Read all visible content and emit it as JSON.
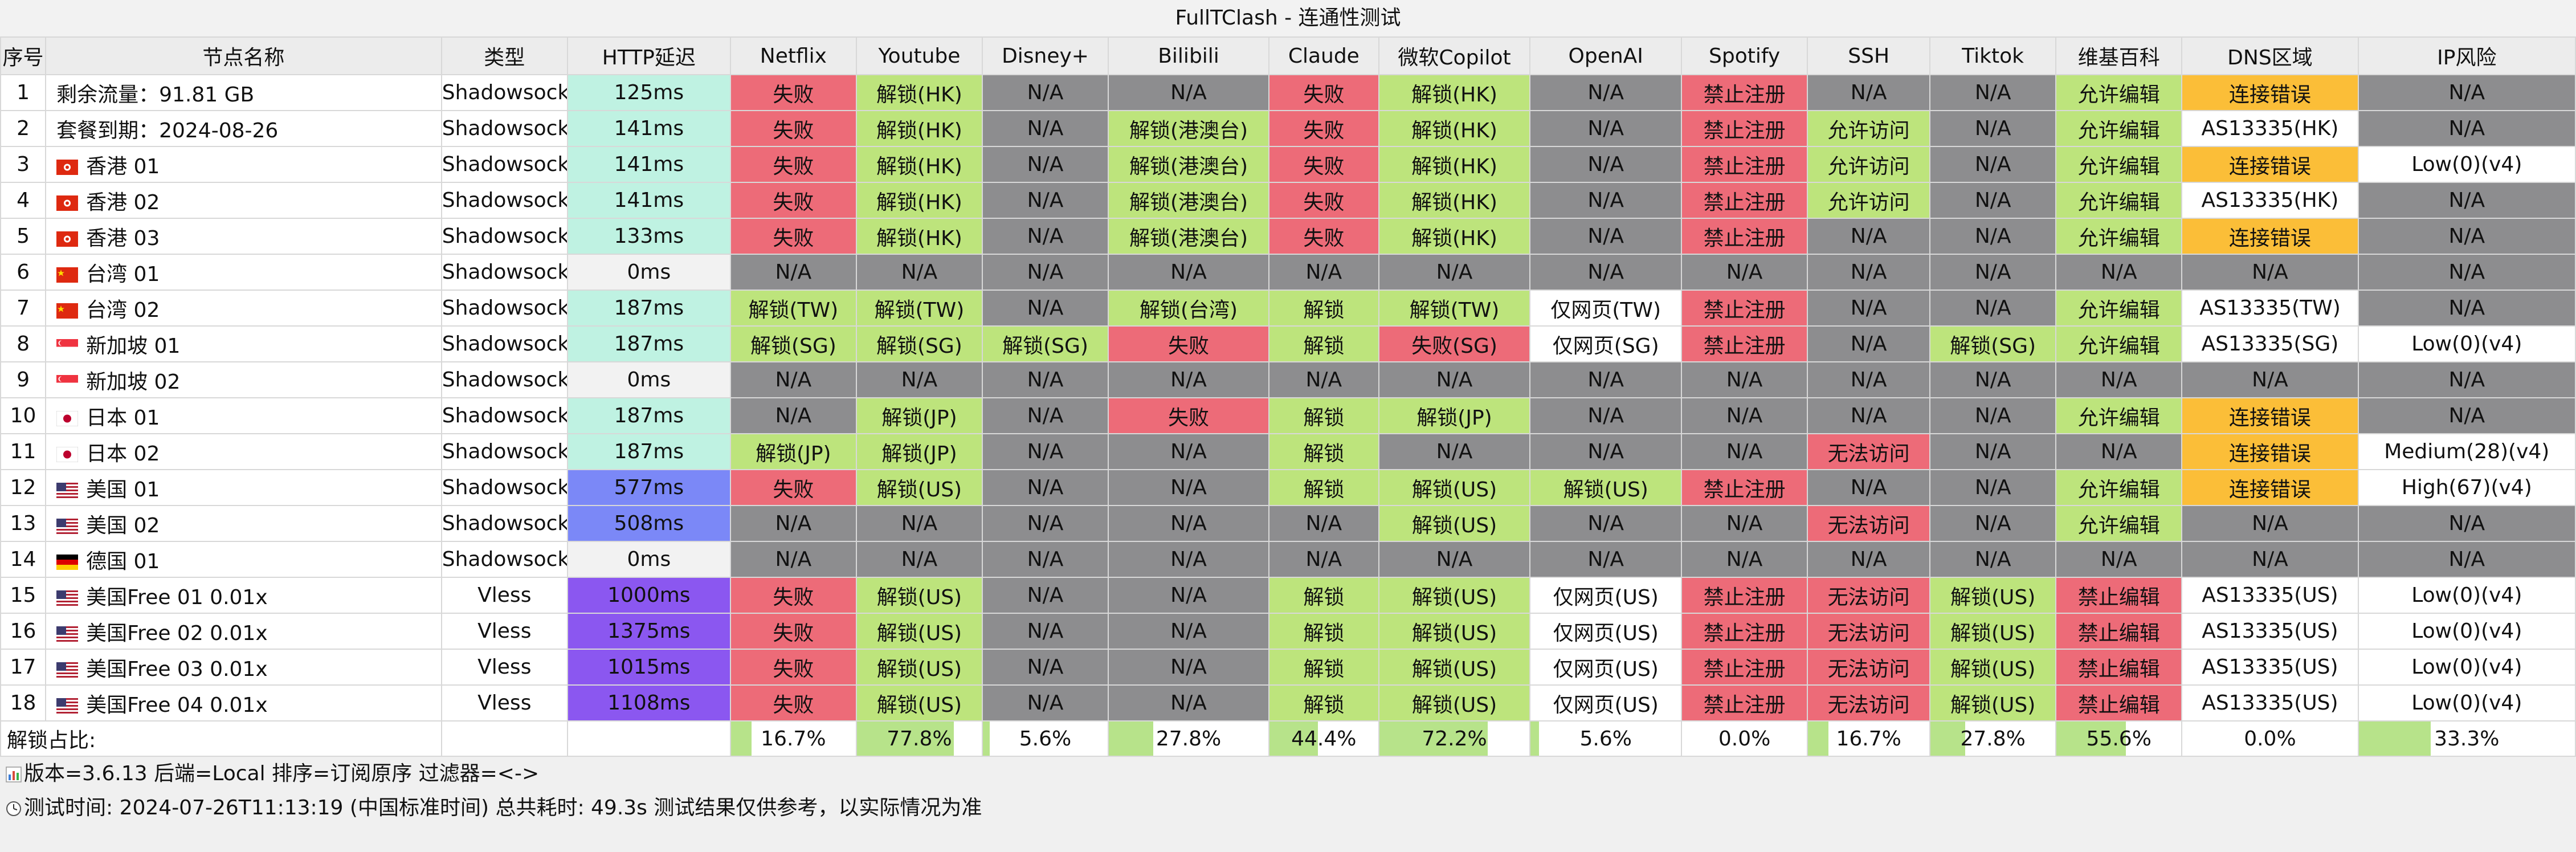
{
  "title": "FullTClash - 连通性测试",
  "columns": [
    "序号",
    "节点名称",
    "类型",
    "HTTP延迟",
    "Netflix",
    "Youtube",
    "Disney+",
    "Bilibili",
    "Claude",
    "微软Copilot",
    "OpenAI",
    "Spotify",
    "SSH",
    "Tiktok",
    "维基百科",
    "DNS区域",
    "IP风险"
  ],
  "colors": {
    "green": "#bde47c",
    "red": "#ed6b78",
    "gray": "#8d8d8f",
    "orange": "#fbbe38",
    "white": "#ffffff",
    "delay_fast": "#bff2e2",
    "delay_zero": "#f2f2f2",
    "delay_mid": "#7b88f7",
    "delay_slow": "#8b57f0",
    "summary_bar": "#b7e38a"
  },
  "rows": [
    {
      "idx": "1",
      "flag": "",
      "name": "剩余流量：91.81 GB",
      "type": "Shadowsocks",
      "delay": "125ms",
      "delay_color": "delay_fast",
      "cells": [
        [
          "失败",
          "red"
        ],
        [
          "解锁(HK)",
          "green"
        ],
        [
          "N/A",
          "gray"
        ],
        [
          "N/A",
          "gray"
        ],
        [
          "失败",
          "red"
        ],
        [
          "解锁(HK)",
          "green"
        ],
        [
          "N/A",
          "gray"
        ],
        [
          "禁止注册",
          "red"
        ],
        [
          "N/A",
          "gray"
        ],
        [
          "N/A",
          "gray"
        ],
        [
          "允许编辑",
          "green"
        ],
        [
          "连接错误",
          "orange"
        ],
        [
          "N/A",
          "gray"
        ]
      ]
    },
    {
      "idx": "2",
      "flag": "",
      "name": "套餐到期：2024-08-26",
      "type": "Shadowsocks",
      "delay": "141ms",
      "delay_color": "delay_fast",
      "cells": [
        [
          "失败",
          "red"
        ],
        [
          "解锁(HK)",
          "green"
        ],
        [
          "N/A",
          "gray"
        ],
        [
          "解锁(港澳台)",
          "green"
        ],
        [
          "失败",
          "red"
        ],
        [
          "解锁(HK)",
          "green"
        ],
        [
          "N/A",
          "gray"
        ],
        [
          "禁止注册",
          "red"
        ],
        [
          "允许访问",
          "green"
        ],
        [
          "N/A",
          "gray"
        ],
        [
          "允许编辑",
          "green"
        ],
        [
          "AS13335(HK)",
          "white"
        ],
        [
          "N/A",
          "gray"
        ]
      ]
    },
    {
      "idx": "3",
      "flag": "hk",
      "name": "香港 01",
      "type": "Shadowsocks",
      "delay": "141ms",
      "delay_color": "delay_fast",
      "cells": [
        [
          "失败",
          "red"
        ],
        [
          "解锁(HK)",
          "green"
        ],
        [
          "N/A",
          "gray"
        ],
        [
          "解锁(港澳台)",
          "green"
        ],
        [
          "失败",
          "red"
        ],
        [
          "解锁(HK)",
          "green"
        ],
        [
          "N/A",
          "gray"
        ],
        [
          "禁止注册",
          "red"
        ],
        [
          "允许访问",
          "green"
        ],
        [
          "N/A",
          "gray"
        ],
        [
          "允许编辑",
          "green"
        ],
        [
          "连接错误",
          "orange"
        ],
        [
          "Low(0)(v4)",
          "white"
        ]
      ]
    },
    {
      "idx": "4",
      "flag": "hk",
      "name": "香港 02",
      "type": "Shadowsocks",
      "delay": "141ms",
      "delay_color": "delay_fast",
      "cells": [
        [
          "失败",
          "red"
        ],
        [
          "解锁(HK)",
          "green"
        ],
        [
          "N/A",
          "gray"
        ],
        [
          "解锁(港澳台)",
          "green"
        ],
        [
          "失败",
          "red"
        ],
        [
          "解锁(HK)",
          "green"
        ],
        [
          "N/A",
          "gray"
        ],
        [
          "禁止注册",
          "red"
        ],
        [
          "允许访问",
          "green"
        ],
        [
          "N/A",
          "gray"
        ],
        [
          "允许编辑",
          "green"
        ],
        [
          "AS13335(HK)",
          "white"
        ],
        [
          "N/A",
          "gray"
        ]
      ]
    },
    {
      "idx": "5",
      "flag": "hk",
      "name": "香港 03",
      "type": "Shadowsocks",
      "delay": "133ms",
      "delay_color": "delay_fast",
      "cells": [
        [
          "失败",
          "red"
        ],
        [
          "解锁(HK)",
          "green"
        ],
        [
          "N/A",
          "gray"
        ],
        [
          "解锁(港澳台)",
          "green"
        ],
        [
          "失败",
          "red"
        ],
        [
          "解锁(HK)",
          "green"
        ],
        [
          "N/A",
          "gray"
        ],
        [
          "禁止注册",
          "red"
        ],
        [
          "N/A",
          "gray"
        ],
        [
          "N/A",
          "gray"
        ],
        [
          "允许编辑",
          "green"
        ],
        [
          "连接错误",
          "orange"
        ],
        [
          "N/A",
          "gray"
        ]
      ]
    },
    {
      "idx": "6",
      "flag": "cn",
      "name": "台湾 01",
      "type": "Shadowsocks",
      "delay": "0ms",
      "delay_color": "delay_zero",
      "cells": [
        [
          "N/A",
          "gray"
        ],
        [
          "N/A",
          "gray"
        ],
        [
          "N/A",
          "gray"
        ],
        [
          "N/A",
          "gray"
        ],
        [
          "N/A",
          "gray"
        ],
        [
          "N/A",
          "gray"
        ],
        [
          "N/A",
          "gray"
        ],
        [
          "N/A",
          "gray"
        ],
        [
          "N/A",
          "gray"
        ],
        [
          "N/A",
          "gray"
        ],
        [
          "N/A",
          "gray"
        ],
        [
          "N/A",
          "gray"
        ],
        [
          "N/A",
          "gray"
        ]
      ]
    },
    {
      "idx": "7",
      "flag": "cn",
      "name": "台湾 02",
      "type": "Shadowsocks",
      "delay": "187ms",
      "delay_color": "delay_fast",
      "cells": [
        [
          "解锁(TW)",
          "green"
        ],
        [
          "解锁(TW)",
          "green"
        ],
        [
          "N/A",
          "gray"
        ],
        [
          "解锁(台湾)",
          "green"
        ],
        [
          "解锁",
          "green"
        ],
        [
          "解锁(TW)",
          "green"
        ],
        [
          "仅网页(TW)",
          "white"
        ],
        [
          "禁止注册",
          "red"
        ],
        [
          "N/A",
          "gray"
        ],
        [
          "N/A",
          "gray"
        ],
        [
          "允许编辑",
          "green"
        ],
        [
          "AS13335(TW)",
          "white"
        ],
        [
          "N/A",
          "gray"
        ]
      ]
    },
    {
      "idx": "8",
      "flag": "sg",
      "name": "新加坡 01",
      "type": "Shadowsocks",
      "delay": "187ms",
      "delay_color": "delay_fast",
      "cells": [
        [
          "解锁(SG)",
          "green"
        ],
        [
          "解锁(SG)",
          "green"
        ],
        [
          "解锁(SG)",
          "green"
        ],
        [
          "失败",
          "red"
        ],
        [
          "解锁",
          "green"
        ],
        [
          "失败(SG)",
          "red"
        ],
        [
          "仅网页(SG)",
          "white"
        ],
        [
          "禁止注册",
          "red"
        ],
        [
          "N/A",
          "gray"
        ],
        [
          "解锁(SG)",
          "green"
        ],
        [
          "允许编辑",
          "green"
        ],
        [
          "AS13335(SG)",
          "white"
        ],
        [
          "Low(0)(v4)",
          "white"
        ]
      ]
    },
    {
      "idx": "9",
      "flag": "sg",
      "name": "新加坡 02",
      "type": "Shadowsocks",
      "delay": "0ms",
      "delay_color": "delay_zero",
      "cells": [
        [
          "N/A",
          "gray"
        ],
        [
          "N/A",
          "gray"
        ],
        [
          "N/A",
          "gray"
        ],
        [
          "N/A",
          "gray"
        ],
        [
          "N/A",
          "gray"
        ],
        [
          "N/A",
          "gray"
        ],
        [
          "N/A",
          "gray"
        ],
        [
          "N/A",
          "gray"
        ],
        [
          "N/A",
          "gray"
        ],
        [
          "N/A",
          "gray"
        ],
        [
          "N/A",
          "gray"
        ],
        [
          "N/A",
          "gray"
        ],
        [
          "N/A",
          "gray"
        ]
      ]
    },
    {
      "idx": "10",
      "flag": "jp",
      "name": "日本 01",
      "type": "Shadowsocks",
      "delay": "187ms",
      "delay_color": "delay_fast",
      "cells": [
        [
          "N/A",
          "gray"
        ],
        [
          "解锁(JP)",
          "green"
        ],
        [
          "N/A",
          "gray"
        ],
        [
          "失败",
          "red"
        ],
        [
          "解锁",
          "green"
        ],
        [
          "解锁(JP)",
          "green"
        ],
        [
          "N/A",
          "gray"
        ],
        [
          "N/A",
          "gray"
        ],
        [
          "N/A",
          "gray"
        ],
        [
          "N/A",
          "gray"
        ],
        [
          "允许编辑",
          "green"
        ],
        [
          "连接错误",
          "orange"
        ],
        [
          "N/A",
          "gray"
        ]
      ]
    },
    {
      "idx": "11",
      "flag": "jp",
      "name": "日本 02",
      "type": "Shadowsocks",
      "delay": "187ms",
      "delay_color": "delay_fast",
      "cells": [
        [
          "解锁(JP)",
          "green"
        ],
        [
          "解锁(JP)",
          "green"
        ],
        [
          "N/A",
          "gray"
        ],
        [
          "N/A",
          "gray"
        ],
        [
          "解锁",
          "green"
        ],
        [
          "N/A",
          "gray"
        ],
        [
          "N/A",
          "gray"
        ],
        [
          "N/A",
          "gray"
        ],
        [
          "无法访问",
          "red"
        ],
        [
          "N/A",
          "gray"
        ],
        [
          "N/A",
          "gray"
        ],
        [
          "连接错误",
          "orange"
        ],
        [
          "Medium(28)(v4)",
          "white"
        ]
      ]
    },
    {
      "idx": "12",
      "flag": "us",
      "name": "美国 01",
      "type": "Shadowsocks",
      "delay": "577ms",
      "delay_color": "delay_mid",
      "cells": [
        [
          "失败",
          "red"
        ],
        [
          "解锁(US)",
          "green"
        ],
        [
          "N/A",
          "gray"
        ],
        [
          "N/A",
          "gray"
        ],
        [
          "解锁",
          "green"
        ],
        [
          "解锁(US)",
          "green"
        ],
        [
          "解锁(US)",
          "green"
        ],
        [
          "禁止注册",
          "red"
        ],
        [
          "N/A",
          "gray"
        ],
        [
          "N/A",
          "gray"
        ],
        [
          "允许编辑",
          "green"
        ],
        [
          "连接错误",
          "orange"
        ],
        [
          "High(67)(v4)",
          "white"
        ]
      ]
    },
    {
      "idx": "13",
      "flag": "us",
      "name": "美国 02",
      "type": "Shadowsocks",
      "delay": "508ms",
      "delay_color": "delay_mid",
      "cells": [
        [
          "N/A",
          "gray"
        ],
        [
          "N/A",
          "gray"
        ],
        [
          "N/A",
          "gray"
        ],
        [
          "N/A",
          "gray"
        ],
        [
          "N/A",
          "gray"
        ],
        [
          "解锁(US)",
          "green"
        ],
        [
          "N/A",
          "gray"
        ],
        [
          "N/A",
          "gray"
        ],
        [
          "无法访问",
          "red"
        ],
        [
          "N/A",
          "gray"
        ],
        [
          "允许编辑",
          "green"
        ],
        [
          "N/A",
          "gray"
        ],
        [
          "N/A",
          "gray"
        ]
      ]
    },
    {
      "idx": "14",
      "flag": "de",
      "name": "德国 01",
      "type": "Shadowsocks",
      "delay": "0ms",
      "delay_color": "delay_zero",
      "cells": [
        [
          "N/A",
          "gray"
        ],
        [
          "N/A",
          "gray"
        ],
        [
          "N/A",
          "gray"
        ],
        [
          "N/A",
          "gray"
        ],
        [
          "N/A",
          "gray"
        ],
        [
          "N/A",
          "gray"
        ],
        [
          "N/A",
          "gray"
        ],
        [
          "N/A",
          "gray"
        ],
        [
          "N/A",
          "gray"
        ],
        [
          "N/A",
          "gray"
        ],
        [
          "N/A",
          "gray"
        ],
        [
          "N/A",
          "gray"
        ],
        [
          "N/A",
          "gray"
        ]
      ]
    },
    {
      "idx": "15",
      "flag": "us",
      "name": "美国Free 01 0.01x",
      "type": "Vless",
      "delay": "1000ms",
      "delay_color": "delay_slow",
      "cells": [
        [
          "失败",
          "red"
        ],
        [
          "解锁(US)",
          "green"
        ],
        [
          "N/A",
          "gray"
        ],
        [
          "N/A",
          "gray"
        ],
        [
          "解锁",
          "green"
        ],
        [
          "解锁(US)",
          "green"
        ],
        [
          "仅网页(US)",
          "white"
        ],
        [
          "禁止注册",
          "red"
        ],
        [
          "无法访问",
          "red"
        ],
        [
          "解锁(US)",
          "green"
        ],
        [
          "禁止编辑",
          "red"
        ],
        [
          "AS13335(US)",
          "white"
        ],
        [
          "Low(0)(v4)",
          "white"
        ]
      ]
    },
    {
      "idx": "16",
      "flag": "us",
      "name": "美国Free 02 0.01x",
      "type": "Vless",
      "delay": "1375ms",
      "delay_color": "delay_slow",
      "cells": [
        [
          "失败",
          "red"
        ],
        [
          "解锁(US)",
          "green"
        ],
        [
          "N/A",
          "gray"
        ],
        [
          "N/A",
          "gray"
        ],
        [
          "解锁",
          "green"
        ],
        [
          "解锁(US)",
          "green"
        ],
        [
          "仅网页(US)",
          "white"
        ],
        [
          "禁止注册",
          "red"
        ],
        [
          "无法访问",
          "red"
        ],
        [
          "解锁(US)",
          "green"
        ],
        [
          "禁止编辑",
          "red"
        ],
        [
          "AS13335(US)",
          "white"
        ],
        [
          "Low(0)(v4)",
          "white"
        ]
      ]
    },
    {
      "idx": "17",
      "flag": "us",
      "name": "美国Free 03 0.01x",
      "type": "Vless",
      "delay": "1015ms",
      "delay_color": "delay_slow",
      "cells": [
        [
          "失败",
          "red"
        ],
        [
          "解锁(US)",
          "green"
        ],
        [
          "N/A",
          "gray"
        ],
        [
          "N/A",
          "gray"
        ],
        [
          "解锁",
          "green"
        ],
        [
          "解锁(US)",
          "green"
        ],
        [
          "仅网页(US)",
          "white"
        ],
        [
          "禁止注册",
          "red"
        ],
        [
          "无法访问",
          "red"
        ],
        [
          "解锁(US)",
          "green"
        ],
        [
          "禁止编辑",
          "red"
        ],
        [
          "AS13335(US)",
          "white"
        ],
        [
          "Low(0)(v4)",
          "white"
        ]
      ]
    },
    {
      "idx": "18",
      "flag": "us",
      "name": "美国Free 04 0.01x",
      "type": "Vless",
      "delay": "1108ms",
      "delay_color": "delay_slow",
      "cells": [
        [
          "失败",
          "red"
        ],
        [
          "解锁(US)",
          "green"
        ],
        [
          "N/A",
          "gray"
        ],
        [
          "N/A",
          "gray"
        ],
        [
          "解锁",
          "green"
        ],
        [
          "解锁(US)",
          "green"
        ],
        [
          "仅网页(US)",
          "white"
        ],
        [
          "禁止注册",
          "red"
        ],
        [
          "无法访问",
          "red"
        ],
        [
          "解锁(US)",
          "green"
        ],
        [
          "禁止编辑",
          "red"
        ],
        [
          "AS13335(US)",
          "white"
        ],
        [
          "Low(0)(v4)",
          "white"
        ]
      ]
    }
  ],
  "summary": {
    "label": "解锁占比:",
    "values": [
      "16.7%",
      "77.8%",
      "5.6%",
      "27.8%",
      "44.4%",
      "72.2%",
      "5.6%",
      "0.0%",
      "16.7%",
      "27.8%",
      "55.6%",
      "0.0%",
      "33.3%"
    ],
    "fractions": [
      0.167,
      0.778,
      0.056,
      0.278,
      0.444,
      0.722,
      0.056,
      0.0,
      0.167,
      0.278,
      0.556,
      0.0,
      0.333
    ]
  },
  "footer": {
    "version_icon": "bar-chart-icon",
    "version_line": "版本=3.6.13  后端=Local  排序=订阅原序  过滤器=<->",
    "time_icon": "clock-icon",
    "time_line": "测试时间: 2024-07-26T11:13:19 (中国标准时间) 总共耗时: 49.3s 测试结果仅供参考，以实际情况为准"
  }
}
